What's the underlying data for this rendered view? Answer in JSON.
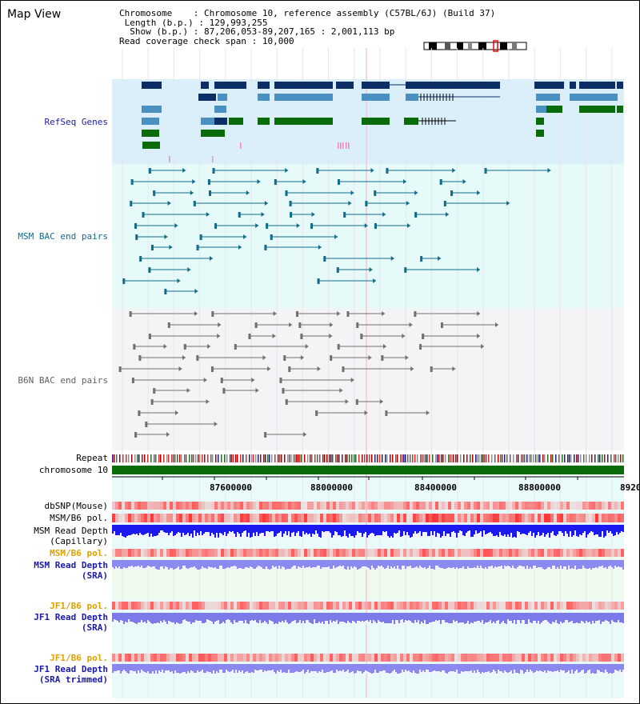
{
  "header": {
    "title": "Map View",
    "chromosome_key": "Chromosome",
    "chromosome_value": "Chromosome 10, reference assembly (C57BL/6J) (Build 37)",
    "length_key": "Length (b.p.)",
    "length_value": "129,993,255",
    "show_key": "Show (b.p.)",
    "show_value": "87,206,053-89,207,165 : 2,001,113 bp",
    "span_key": "Read coverage check span",
    "span_value": "10,000"
  },
  "tracks": {
    "refseq": "RefSeq Genes",
    "msm_bac": "MSM BAC end pairs",
    "b6n_bac": "B6N BAC end pairs",
    "repeat": "Repeat",
    "chromosome": "chromosome 10",
    "dbsnp": "dbSNP(Mouse)",
    "msm_b6_pol": "MSM/B6 pol.",
    "msm_read_depth_cap_1": "MSM Read Depth",
    "msm_read_depth_cap_2": "(Capillary)",
    "msm_b6_pol_sra": "MSM/B6 pol.",
    "msm_read_depth_sra_1": "MSM Read Depth",
    "msm_read_depth_sra_2": "(SRA)",
    "jf1_b6_pol": "JF1/B6 pol.",
    "jf1_read_depth_1": "JF1 Read Depth",
    "jf1_read_depth_2": "(SRA)",
    "jf1_b6_pol_trim": "JF1/B6 pol.",
    "jf1_read_depth_trim_1": "JF1 Read Depth",
    "jf1_read_depth_trim_2": "(SRA trimmed)"
  },
  "axis": {
    "ticks": [
      "87600000",
      "88000000",
      "88400000",
      "88800000",
      "8920"
    ]
  },
  "colors": {
    "refseq_bg": "#dbeffa",
    "msm_bg": "#e6fafa",
    "b6n_bg": "#f4f4f6",
    "lower_bg": "#e8fafa",
    "gene_dark": "#0b2e66",
    "gene_mid": "#4a90c0",
    "gene_green": "#0a6b0a",
    "bac_teal": "#126b8a",
    "bac_gray": "#707070",
    "chrom_green": "#0a6b0a",
    "label_blue": "#1a1aa8",
    "label_teal": "#126b8a",
    "label_gray": "#606060",
    "label_orange": "#e0a000"
  }
}
